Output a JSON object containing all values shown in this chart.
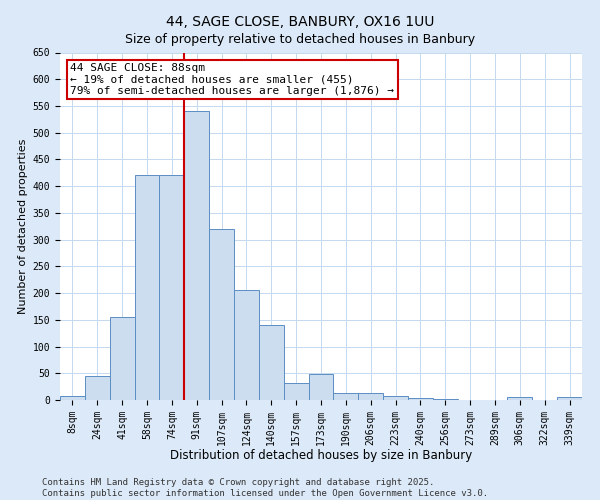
{
  "title": "44, SAGE CLOSE, BANBURY, OX16 1UU",
  "subtitle": "Size of property relative to detached houses in Banbury",
  "xlabel": "Distribution of detached houses by size in Banbury",
  "ylabel": "Number of detached properties",
  "categories": [
    "8sqm",
    "24sqm",
    "41sqm",
    "58sqm",
    "74sqm",
    "91sqm",
    "107sqm",
    "124sqm",
    "140sqm",
    "157sqm",
    "173sqm",
    "190sqm",
    "206sqm",
    "223sqm",
    "240sqm",
    "256sqm",
    "273sqm",
    "289sqm",
    "306sqm",
    "322sqm",
    "339sqm"
  ],
  "values": [
    7,
    45,
    155,
    420,
    420,
    540,
    320,
    205,
    140,
    32,
    48,
    14,
    13,
    8,
    4,
    1,
    0,
    0,
    5,
    0,
    6
  ],
  "bar_color": "#ccddf0",
  "bar_edge_color": "#5b8ec4",
  "vline_x_index": 5,
  "vline_color": "#cc0000",
  "annotation_text": "44 SAGE CLOSE: 88sqm\n← 19% of detached houses are smaller (455)\n79% of semi-detached houses are larger (1,876) →",
  "annotation_box_color": "#ffffff",
  "annotation_box_edge_color": "#cc0000",
  "ylim": [
    0,
    650
  ],
  "yticks": [
    0,
    50,
    100,
    150,
    200,
    250,
    300,
    350,
    400,
    450,
    500,
    550,
    600,
    650
  ],
  "footer": "Contains HM Land Registry data © Crown copyright and database right 2025.\nContains public sector information licensed under the Open Government Licence v3.0.",
  "fig_bg_color": "#dce9f8",
  "plot_bg_color": "#ffffff",
  "grid_color": "#c5d9ef",
  "title_fontsize": 10,
  "tick_fontsize": 7,
  "xlabel_fontsize": 8.5,
  "ylabel_fontsize": 8,
  "footer_fontsize": 6.5,
  "annotation_fontsize": 8
}
